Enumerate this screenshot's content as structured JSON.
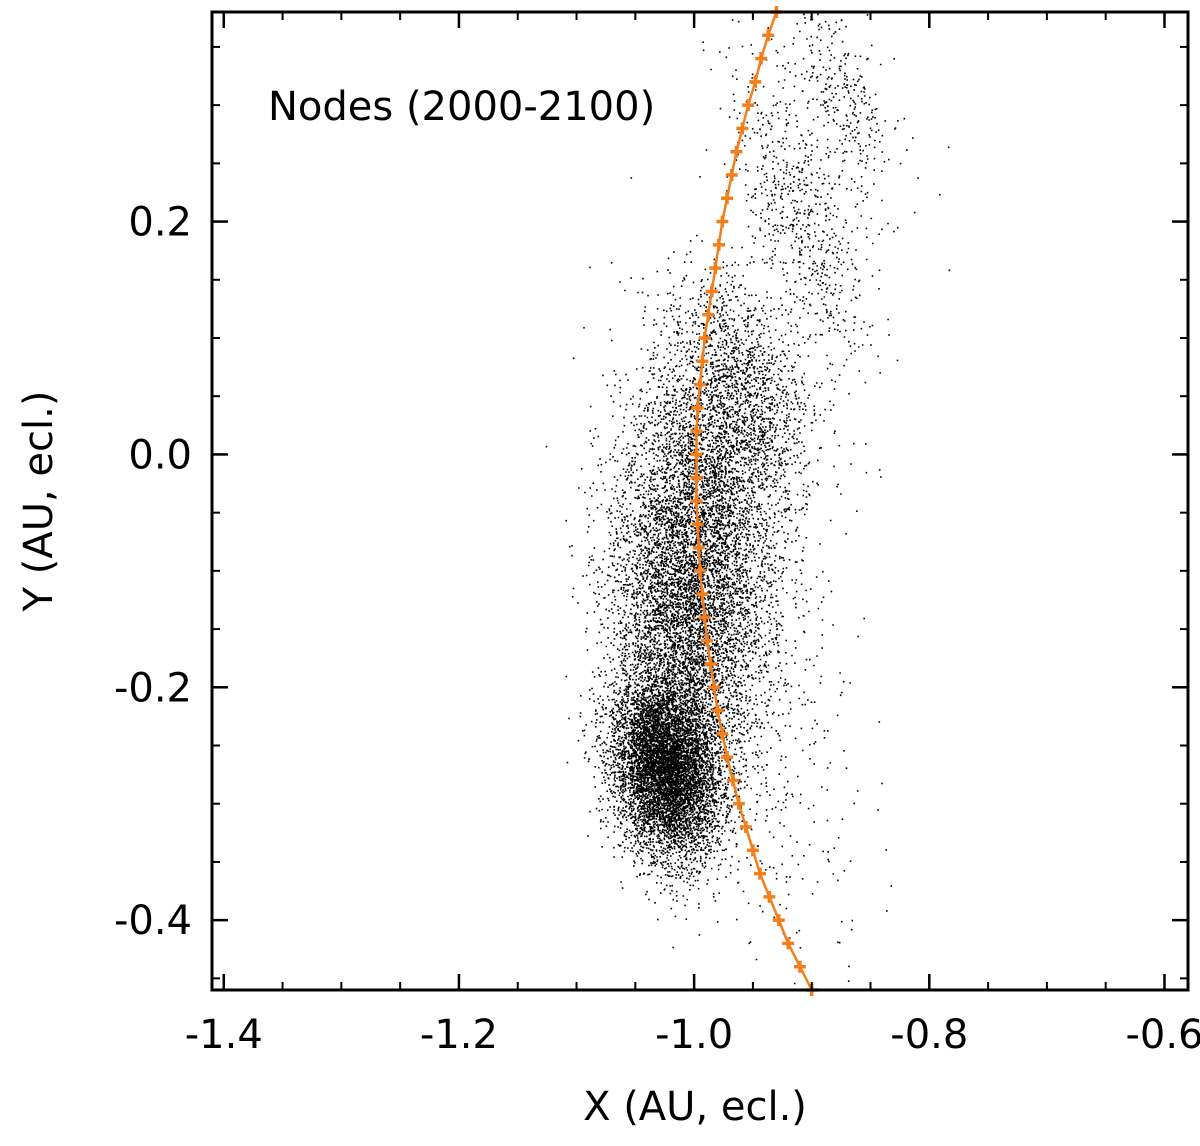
{
  "chart_data": {
    "type": "scatter",
    "title": "Nodes (2000-2100)",
    "xlabel": "X (AU, ecl.)",
    "ylabel": "Y (AU, ecl.)",
    "xlim": [
      -1.41,
      -0.58
    ],
    "ylim": [
      -0.46,
      0.38
    ],
    "xticks": [
      -1.4,
      -1.2,
      -1.0,
      -0.8,
      -0.6
    ],
    "xtick_labels": [
      "-1.4",
      "-1.2",
      "-1.0",
      "-0.8",
      "-0.6"
    ],
    "yticks": [
      -0.4,
      -0.2,
      0.0,
      0.2
    ],
    "ytick_labels": [
      "-0.4",
      "-0.2",
      "0.0",
      "0.2"
    ],
    "x_minor_step": 0.05,
    "y_minor_step": 0.05,
    "grid": false,
    "legend": "none",
    "colors": {
      "nodes": "#000000",
      "orbit": "#f27f1b",
      "frame": "#000000"
    },
    "series": [
      {
        "type": "scatter-density",
        "description_values": "dense cloud of node points",
        "clusters": [
          {
            "cx": -1.025,
            "cy": -0.27,
            "sx": 0.022,
            "sy": 0.038,
            "tilt": -0.25,
            "n": 9000
          },
          {
            "cx": -1.01,
            "cy": -0.14,
            "sx": 0.03,
            "sy": 0.07,
            "tilt": -0.2,
            "n": 5000
          },
          {
            "cx": -0.985,
            "cy": -0.03,
            "sx": 0.03,
            "sy": 0.06,
            "tilt": -0.35,
            "n": 2600
          },
          {
            "cx": -0.96,
            "cy": 0.06,
            "sx": 0.025,
            "sy": 0.05,
            "tilt": -0.5,
            "n": 1400
          },
          {
            "cx": -0.91,
            "cy": 0.2,
            "sx": 0.022,
            "sy": 0.07,
            "tilt": -0.5,
            "n": 700
          },
          {
            "cx": -0.875,
            "cy": 0.31,
            "sx": 0.018,
            "sy": 0.05,
            "tilt": -0.6,
            "n": 350
          },
          {
            "cx": -0.95,
            "cy": -0.2,
            "sx": 0.04,
            "sy": 0.12,
            "tilt": -0.3,
            "n": 500
          }
        ]
      },
      {
        "type": "line-markers",
        "points": [
          [
            -0.9,
            -0.46
          ],
          [
            -0.91,
            -0.44
          ],
          [
            -0.92,
            -0.42
          ],
          [
            -0.928,
            -0.4
          ],
          [
            -0.936,
            -0.38
          ],
          [
            -0.944,
            -0.36
          ],
          [
            -0.95,
            -0.34
          ],
          [
            -0.956,
            -0.32
          ],
          [
            -0.962,
            -0.3
          ],
          [
            -0.967,
            -0.28
          ],
          [
            -0.972,
            -0.26
          ],
          [
            -0.976,
            -0.24
          ],
          [
            -0.98,
            -0.22
          ],
          [
            -0.983,
            -0.2
          ],
          [
            -0.986,
            -0.18
          ],
          [
            -0.989,
            -0.16
          ],
          [
            -0.991,
            -0.14
          ],
          [
            -0.993,
            -0.12
          ],
          [
            -0.995,
            -0.1
          ],
          [
            -0.996,
            -0.08
          ],
          [
            -0.997,
            -0.06
          ],
          [
            -0.998,
            -0.04
          ],
          [
            -0.998,
            -0.02
          ],
          [
            -0.998,
            0.0
          ],
          [
            -0.998,
            0.02
          ],
          [
            -0.997,
            0.04
          ],
          [
            -0.995,
            0.06
          ],
          [
            -0.993,
            0.08
          ],
          [
            -0.991,
            0.1
          ],
          [
            -0.988,
            0.12
          ],
          [
            -0.985,
            0.14
          ],
          [
            -0.982,
            0.16
          ],
          [
            -0.979,
            0.18
          ],
          [
            -0.976,
            0.2
          ],
          [
            -0.972,
            0.22
          ],
          [
            -0.968,
            0.24
          ],
          [
            -0.964,
            0.26
          ],
          [
            -0.959,
            0.28
          ],
          [
            -0.954,
            0.3
          ],
          [
            -0.948,
            0.32
          ],
          [
            -0.943,
            0.34
          ],
          [
            -0.937,
            0.36
          ],
          [
            -0.93,
            0.38
          ]
        ]
      }
    ]
  }
}
